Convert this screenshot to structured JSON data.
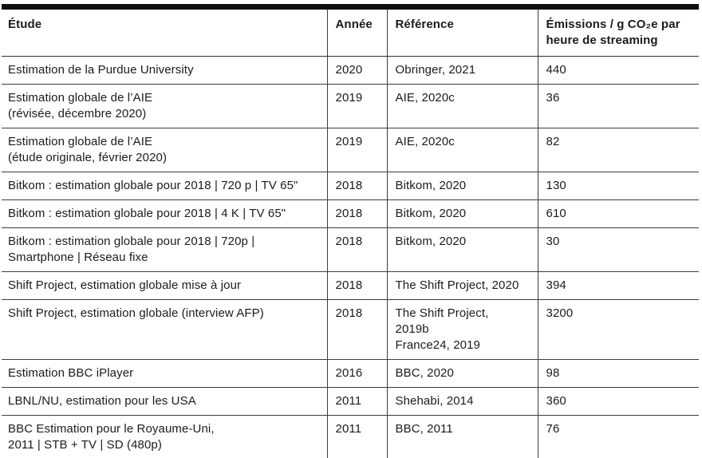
{
  "table": {
    "name": "emissions-streaming-table",
    "columns": [
      {
        "id": "etude",
        "label": "Étude"
      },
      {
        "id": "annee",
        "label": "Année"
      },
      {
        "id": "reference",
        "label": "Référence"
      },
      {
        "id": "emissions",
        "label": "Émissions / g CO₂e par heure de streaming"
      }
    ],
    "rows": [
      {
        "etude": "Estimation de la Purdue University",
        "annee": "2020",
        "reference": "Obringer, 2021",
        "emissions": "440"
      },
      {
        "etude": "Estimation globale de l’AIE\n(révisée, décembre 2020)",
        "annee": "2019",
        "reference": "AIE, 2020c",
        "emissions": "36"
      },
      {
        "etude": "Estimation globale de l’AIE\n(étude originale, février 2020)",
        "annee": "2019",
        "reference": "AIE, 2020c",
        "emissions": "82"
      },
      {
        "etude": "Bitkom : estimation globale pour 2018 | 720 p | TV 65\"",
        "annee": "2018",
        "reference": "Bitkom, 2020",
        "emissions": "130"
      },
      {
        "etude": "Bitkom : estimation globale pour 2018 | 4 K | TV 65\"",
        "annee": "2018",
        "reference": "Bitkom, 2020",
        "emissions": "610"
      },
      {
        "etude": "Bitkom : estimation globale pour 2018 | 720p |\nSmartphone | Réseau fixe",
        "annee": "2018",
        "reference": "Bitkom, 2020",
        "emissions": "30"
      },
      {
        "etude": "Shift Project, estimation globale mise à jour",
        "annee": "2018",
        "reference": "The Shift Project, 2020",
        "emissions": "394"
      },
      {
        "etude": "Shift Project, estimation globale (interview AFP)",
        "annee": "2018",
        "reference": "The Shift Project,\n2019b\nFrance24, 2019",
        "emissions": "3200"
      },
      {
        "etude": "Estimation BBC iPlayer",
        "annee": "2016",
        "reference": "BBC, 2020",
        "emissions": "98"
      },
      {
        "etude": "LBNL/NU, estimation pour les USA",
        "annee": "2011",
        "reference": "Shehabi, 2014",
        "emissions": "360"
      },
      {
        "etude": "BBC Estimation pour le Royaume-Uni,\n2011 | STB + TV | SD (480p)",
        "annee": "2011",
        "reference": "BBC, 2011",
        "emissions": "76"
      }
    ]
  }
}
